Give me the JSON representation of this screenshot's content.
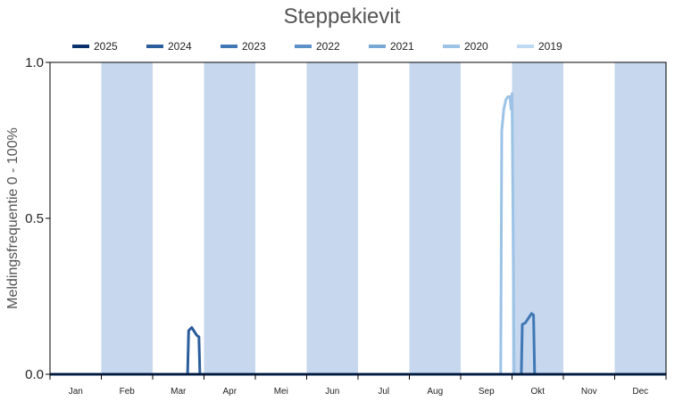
{
  "chart_data": {
    "type": "line",
    "title": "Steppekievit",
    "ylabel": "Meldingsfrequentie 0 - 100%",
    "xlabel": "",
    "ylim": [
      0,
      1
    ],
    "xlim": [
      0,
      12
    ],
    "yticks": [
      "0.0",
      "0.5",
      "1.0"
    ],
    "months": [
      "Jan",
      "Feb",
      "Mar",
      "Apr",
      "Mei",
      "Jun",
      "Jul",
      "Aug",
      "Sep",
      "Okt",
      "Nov",
      "Dec"
    ],
    "shaded_months": [
      1,
      3,
      5,
      7,
      9,
      11
    ],
    "grid": false,
    "legend_position": "top",
    "series": [
      {
        "name": "2025",
        "color": "#08306b",
        "x": [
          0,
          12
        ],
        "y": [
          0,
          0
        ]
      },
      {
        "name": "2024",
        "color": "#2a5d9c",
        "x": [
          0,
          2.68,
          2.7,
          2.76,
          2.8,
          2.86,
          2.9,
          2.92,
          12
        ],
        "y": [
          0,
          0,
          0.14,
          0.15,
          0.14,
          0.125,
          0.12,
          0,
          0
        ]
      },
      {
        "name": "2023",
        "color": "#3f78b5",
        "x": [
          0,
          9.18,
          9.2,
          9.26,
          9.32,
          9.38,
          9.42,
          9.44,
          12
        ],
        "y": [
          0,
          0,
          0.16,
          0.165,
          0.18,
          0.195,
          0.19,
          0,
          0
        ]
      },
      {
        "name": "2022",
        "color": "#5a91c6",
        "x": [
          0,
          12
        ],
        "y": [
          0,
          0
        ]
      },
      {
        "name": "2021",
        "color": "#78a9d6",
        "x": [
          0,
          12
        ],
        "y": [
          0,
          0
        ]
      },
      {
        "name": "2020",
        "color": "#9cc3e6",
        "x": [
          0,
          8.78,
          8.8,
          8.84,
          8.88,
          8.92,
          8.96,
          8.98,
          9.0,
          9.02,
          9.04,
          12
        ],
        "y": [
          0,
          0,
          0.78,
          0.85,
          0.88,
          0.89,
          0.89,
          0.85,
          0.9,
          0.5,
          0,
          0
        ]
      },
      {
        "name": "2019",
        "color": "#bedaf2",
        "x": [
          0,
          12
        ],
        "y": [
          0,
          0
        ]
      }
    ]
  }
}
